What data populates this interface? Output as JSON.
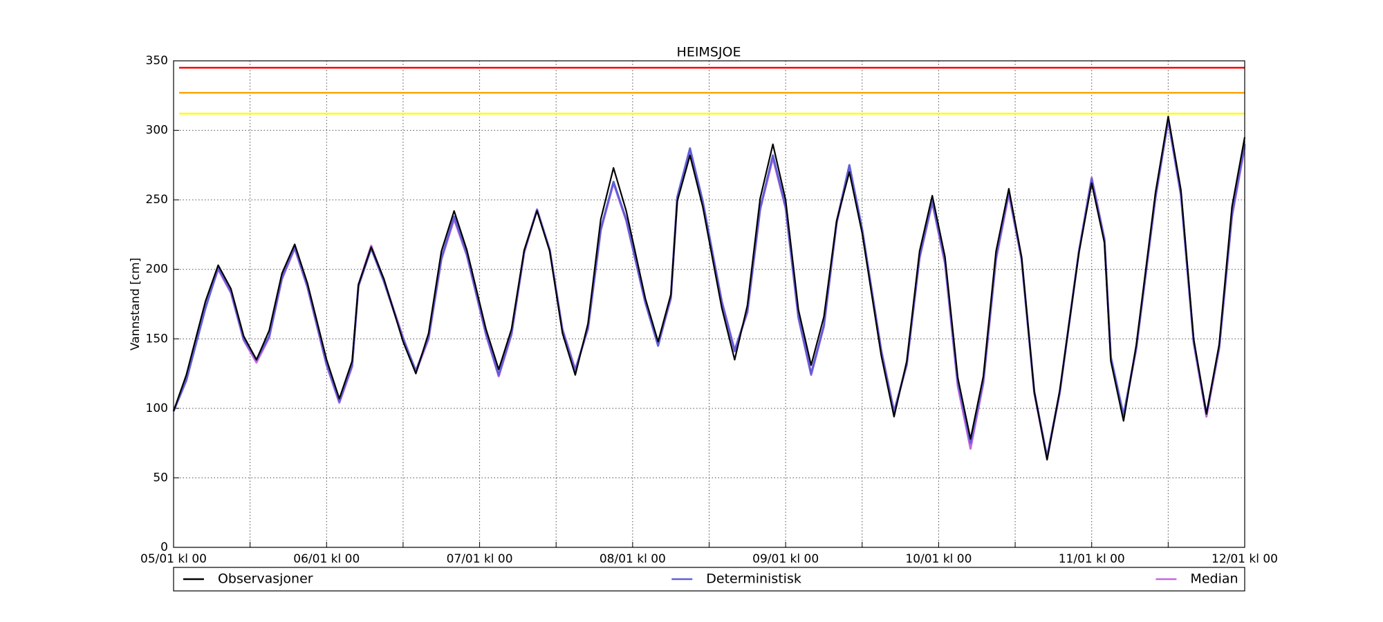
{
  "chart_data": {
    "type": "line",
    "title": "HEIMSJOE",
    "y_label": "Vannstand [cm]",
    "x": [
      0,
      2,
      5,
      7,
      9,
      11,
      13,
      15,
      17,
      19,
      21,
      24,
      26,
      28,
      29,
      31,
      33,
      36,
      38,
      40,
      42,
      44,
      46,
      49,
      51,
      53,
      55,
      57,
      59,
      61,
      63,
      65,
      67,
      69,
      71,
      74,
      76,
      78,
      79,
      81,
      83,
      86,
      88,
      90,
      92,
      94,
      96,
      98,
      100,
      102,
      104,
      106,
      108,
      111,
      113,
      115,
      117,
      119,
      121,
      123,
      125,
      127,
      129,
      131,
      133,
      135,
      137,
      139,
      142,
      144,
      146,
      147,
      149,
      151,
      154,
      156,
      158,
      160,
      162,
      164,
      166,
      168
    ],
    "series": [
      {
        "name": "Observasjoner",
        "color": "#000000",
        "values": [
          98,
          124,
          177,
          203,
          186,
          152,
          135,
          156,
          197,
          218,
          190,
          135,
          107,
          134,
          189,
          216,
          193,
          148,
          125,
          154,
          213,
          242,
          214,
          157,
          128,
          157,
          214,
          242,
          213,
          154,
          124,
          161,
          236,
          273,
          242,
          179,
          148,
          182,
          249,
          282,
          245,
          172,
          135,
          174,
          251,
          290,
          250,
          171,
          131,
          166,
          235,
          270,
          226,
          138,
          94,
          134,
          213,
          253,
          209,
          122,
          78,
          123,
          213,
          258,
          209,
          112,
          63,
          113,
          212,
          262,
          219,
          134,
          91,
          146,
          255,
          310,
          257,
          150,
          96,
          146,
          245,
          295
        ]
      },
      {
        "name": "Deterministisk",
        "color": "#5f5fd6",
        "values": [
          98,
          120,
          172,
          201,
          184,
          150,
          135,
          152,
          194,
          216,
          188,
          132,
          105,
          131,
          188,
          215,
          191,
          150,
          127,
          151,
          208,
          238,
          211,
          154,
          124,
          154,
          213,
          243,
          214,
          156,
          127,
          158,
          229,
          263,
          236,
          176,
          145,
          180,
          252,
          287,
          249,
          176,
          141,
          170,
          244,
          282,
          245,
          166,
          125,
          160,
          234,
          275,
          229,
          141,
          97,
          132,
          209,
          249,
          206,
          119,
          75,
          120,
          209,
          256,
          208,
          112,
          65,
          112,
          213,
          265,
          221,
          137,
          95,
          144,
          252,
          308,
          254,
          148,
          96,
          144,
          240,
          290
        ]
      },
      {
        "name": "Median",
        "color": "#c566e0",
        "values": [
          98,
          121,
          173,
          200,
          183,
          149,
          133,
          151,
          193,
          215,
          187,
          131,
          104,
          130,
          189,
          217,
          192,
          151,
          126,
          150,
          207,
          236,
          210,
          153,
          123,
          153,
          212,
          243,
          214,
          157,
          128,
          157,
          228,
          262,
          235,
          176,
          146,
          179,
          250,
          285,
          248,
          177,
          142,
          169,
          243,
          280,
          244,
          165,
          124,
          159,
          233,
          274,
          228,
          142,
          98,
          131,
          208,
          248,
          204,
          116,
          71,
          118,
          207,
          254,
          207,
          111,
          64,
          111,
          213,
          266,
          222,
          136,
          94,
          143,
          251,
          307,
          253,
          147,
          94,
          143,
          238,
          288
        ]
      }
    ],
    "thresholds": [
      {
        "value": 345,
        "color": "#ff0000"
      },
      {
        "value": 327,
        "color": "#ffa500"
      },
      {
        "value": 312,
        "color": "#ffff00"
      }
    ],
    "xlim": [
      0,
      168
    ],
    "xticks": [
      {
        "value": 0,
        "label": "05/01 kl 00"
      },
      {
        "value": 24,
        "label": "06/01 kl 00"
      },
      {
        "value": 48,
        "label": "07/01 kl 00"
      },
      {
        "value": 72,
        "label": "08/01 kl 00"
      },
      {
        "value": 96,
        "label": "09/01 kl 00"
      },
      {
        "value": 120,
        "label": "10/01 kl 00"
      },
      {
        "value": 144,
        "label": "11/01 kl 00"
      },
      {
        "value": 168,
        "label": "12/01 kl 00"
      }
    ],
    "minor_xticks": [
      12,
      36,
      60,
      84,
      108,
      132,
      156
    ],
    "ylim": [
      0,
      350
    ],
    "yticks": [
      0,
      50,
      100,
      150,
      200,
      250,
      300,
      350
    ],
    "grid": true,
    "legend": "bottom"
  }
}
